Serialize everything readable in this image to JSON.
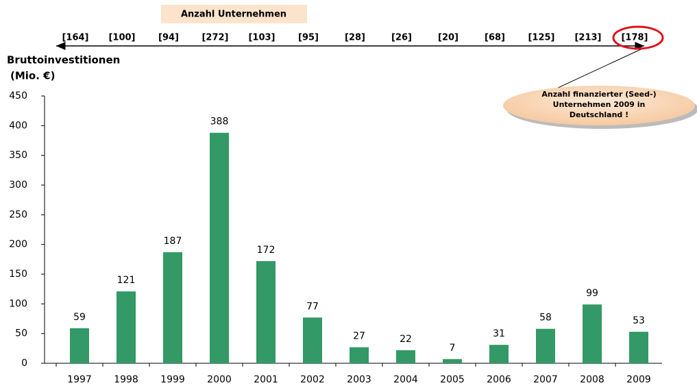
{
  "chart_data": {
    "type": "bar",
    "header": "Anzahl Unternehmen",
    "company_counts": [
      "[164]",
      "[100]",
      "[94]",
      "[272]",
      "[103]",
      "[95]",
      "[28]",
      "[26]",
      "[20]",
      "[68]",
      "[125]",
      "[213]",
      "[178]"
    ],
    "y_label": [
      "Bruttoinvestitionen",
      "(Mio. €)"
    ],
    "annotation": [
      "Anzahl finanzierter (Seed-)",
      "Unternehmen 2009 in",
      "Deutschland !"
    ],
    "categories": [
      "1997",
      "1998",
      "1999",
      "2000",
      "2001",
      "2002",
      "2003",
      "2004",
      "2005",
      "2006",
      "2007",
      "2008",
      "2009"
    ],
    "values": [
      59,
      121,
      187,
      388,
      172,
      77,
      27,
      22,
      7,
      31,
      58,
      99,
      53
    ],
    "color": "#339966",
    "ylim": [
      0,
      450
    ],
    "yticks": [
      0,
      50,
      100,
      150,
      200,
      250,
      300,
      350,
      400,
      450
    ],
    "grid": false
  }
}
